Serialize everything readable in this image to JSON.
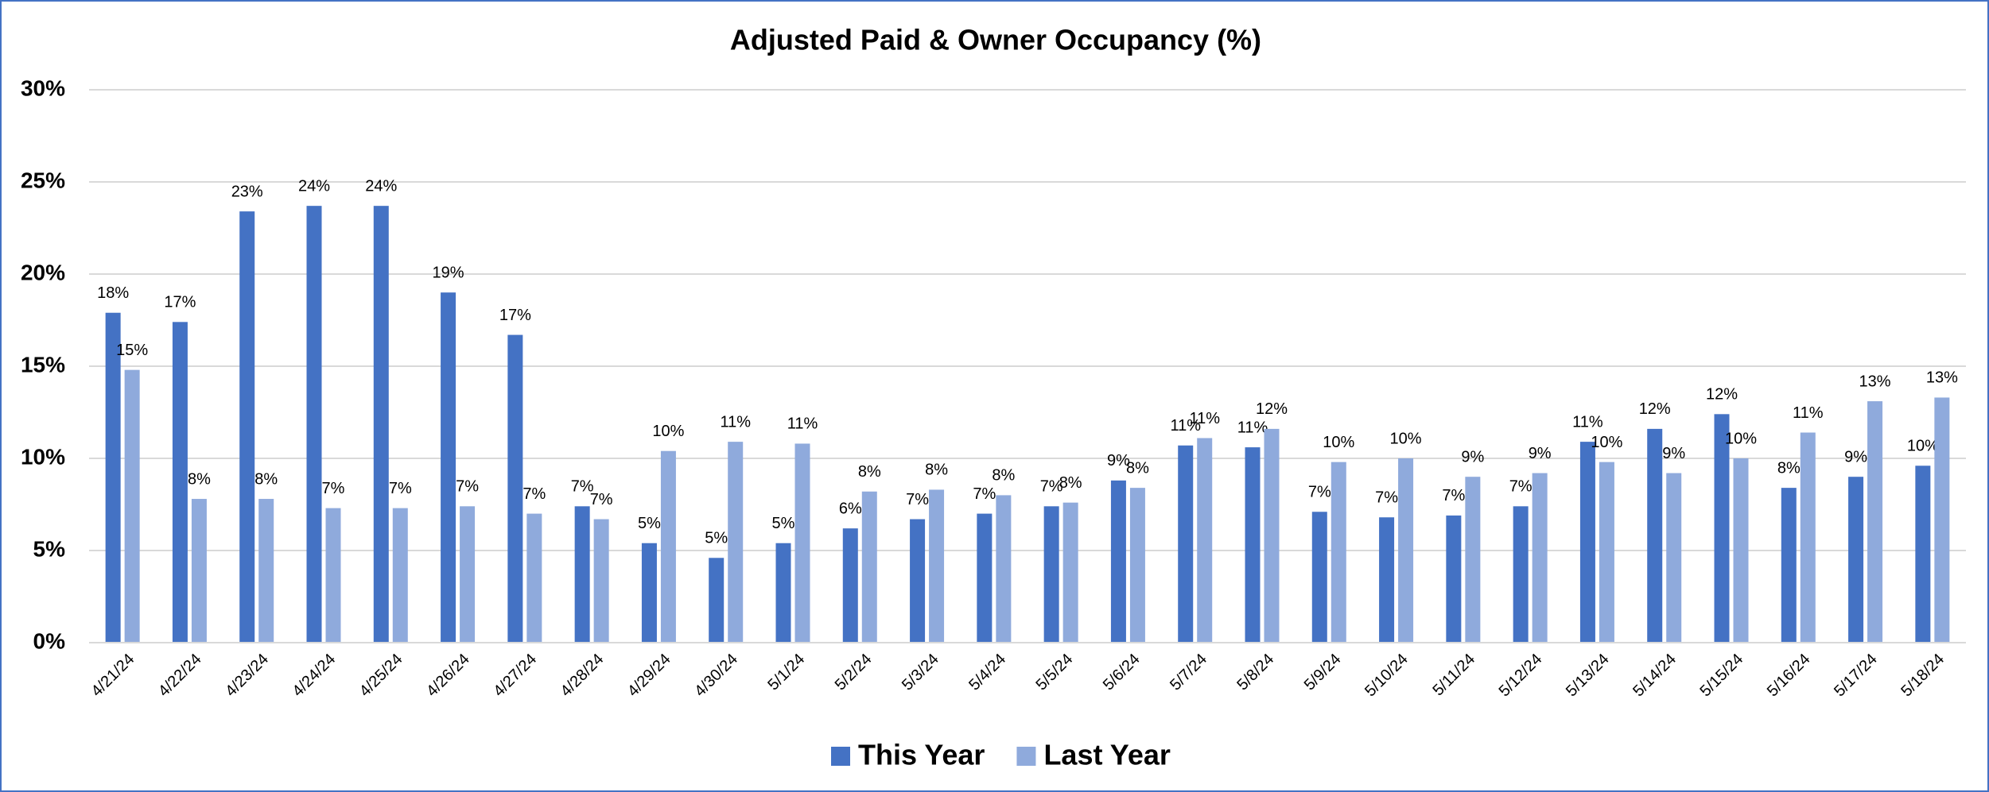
{
  "chart_data": {
    "type": "bar",
    "title": "Adjusted Paid & Owner Occupancy (%)",
    "categories": [
      "4/21/24",
      "4/22/24",
      "4/23/24",
      "4/24/24",
      "4/25/24",
      "4/26/24",
      "4/27/24",
      "4/28/24",
      "4/29/24",
      "4/30/24",
      "5/1/24",
      "5/2/24",
      "5/3/24",
      "5/4/24",
      "5/5/24",
      "5/6/24",
      "5/7/24",
      "5/8/24",
      "5/9/24",
      "5/10/24",
      "5/11/24",
      "5/12/24",
      "5/13/24",
      "5/14/24",
      "5/15/24",
      "5/16/24",
      "5/17/24",
      "5/18/24"
    ],
    "series": [
      {
        "name": "This Year",
        "color": "#4472c4",
        "values": [
          17.9,
          17.4,
          23.4,
          23.7,
          23.7,
          19.0,
          16.7,
          7.4,
          5.4,
          4.6,
          5.4,
          6.2,
          6.7,
          7.0,
          7.4,
          8.8,
          10.7,
          10.6,
          7.1,
          6.8,
          6.9,
          7.4,
          10.9,
          11.6,
          12.4,
          8.4,
          9.0,
          9.6
        ],
        "value_labels": [
          "18%",
          "17%",
          "23%",
          "24%",
          "24%",
          "19%",
          "17%",
          "7%",
          "5%",
          "5%",
          "5%",
          "6%",
          "7%",
          "7%",
          "7%",
          "9%",
          "11%",
          "11%",
          "7%",
          "7%",
          "7%",
          "7%",
          "11%",
          "12%",
          "12%",
          "8%",
          "9%",
          "10%"
        ]
      },
      {
        "name": "Last Year",
        "color": "#8faadc",
        "values": [
          14.8,
          7.8,
          7.8,
          7.3,
          7.3,
          7.4,
          7.0,
          6.7,
          10.4,
          10.9,
          10.8,
          8.2,
          8.3,
          8.0,
          7.6,
          8.4,
          11.1,
          11.6,
          9.8,
          10.0,
          9.0,
          9.2,
          9.8,
          9.2,
          10.0,
          11.4,
          13.1,
          13.3
        ],
        "value_labels": [
          "15%",
          "8%",
          "8%",
          "7%",
          "7%",
          "7%",
          "7%",
          "7%",
          "10%",
          "11%",
          "11%",
          "8%",
          "8%",
          "8%",
          "8%",
          "8%",
          "11%",
          "12%",
          "10%",
          "10%",
          "9%",
          "9%",
          "10%",
          "9%",
          "10%",
          "11%",
          "13%",
          "13%"
        ]
      }
    ],
    "ylim": [
      0,
      30
    ],
    "yticks": [
      {
        "value": 0,
        "label": "0%"
      },
      {
        "value": 5,
        "label": "5%"
      },
      {
        "value": 10,
        "label": "10%"
      },
      {
        "value": 15,
        "label": "15%"
      },
      {
        "value": 20,
        "label": "20%"
      },
      {
        "value": 25,
        "label": "25%"
      },
      {
        "value": 30,
        "label": "30%"
      }
    ],
    "grid": true,
    "legend": "bottom"
  }
}
